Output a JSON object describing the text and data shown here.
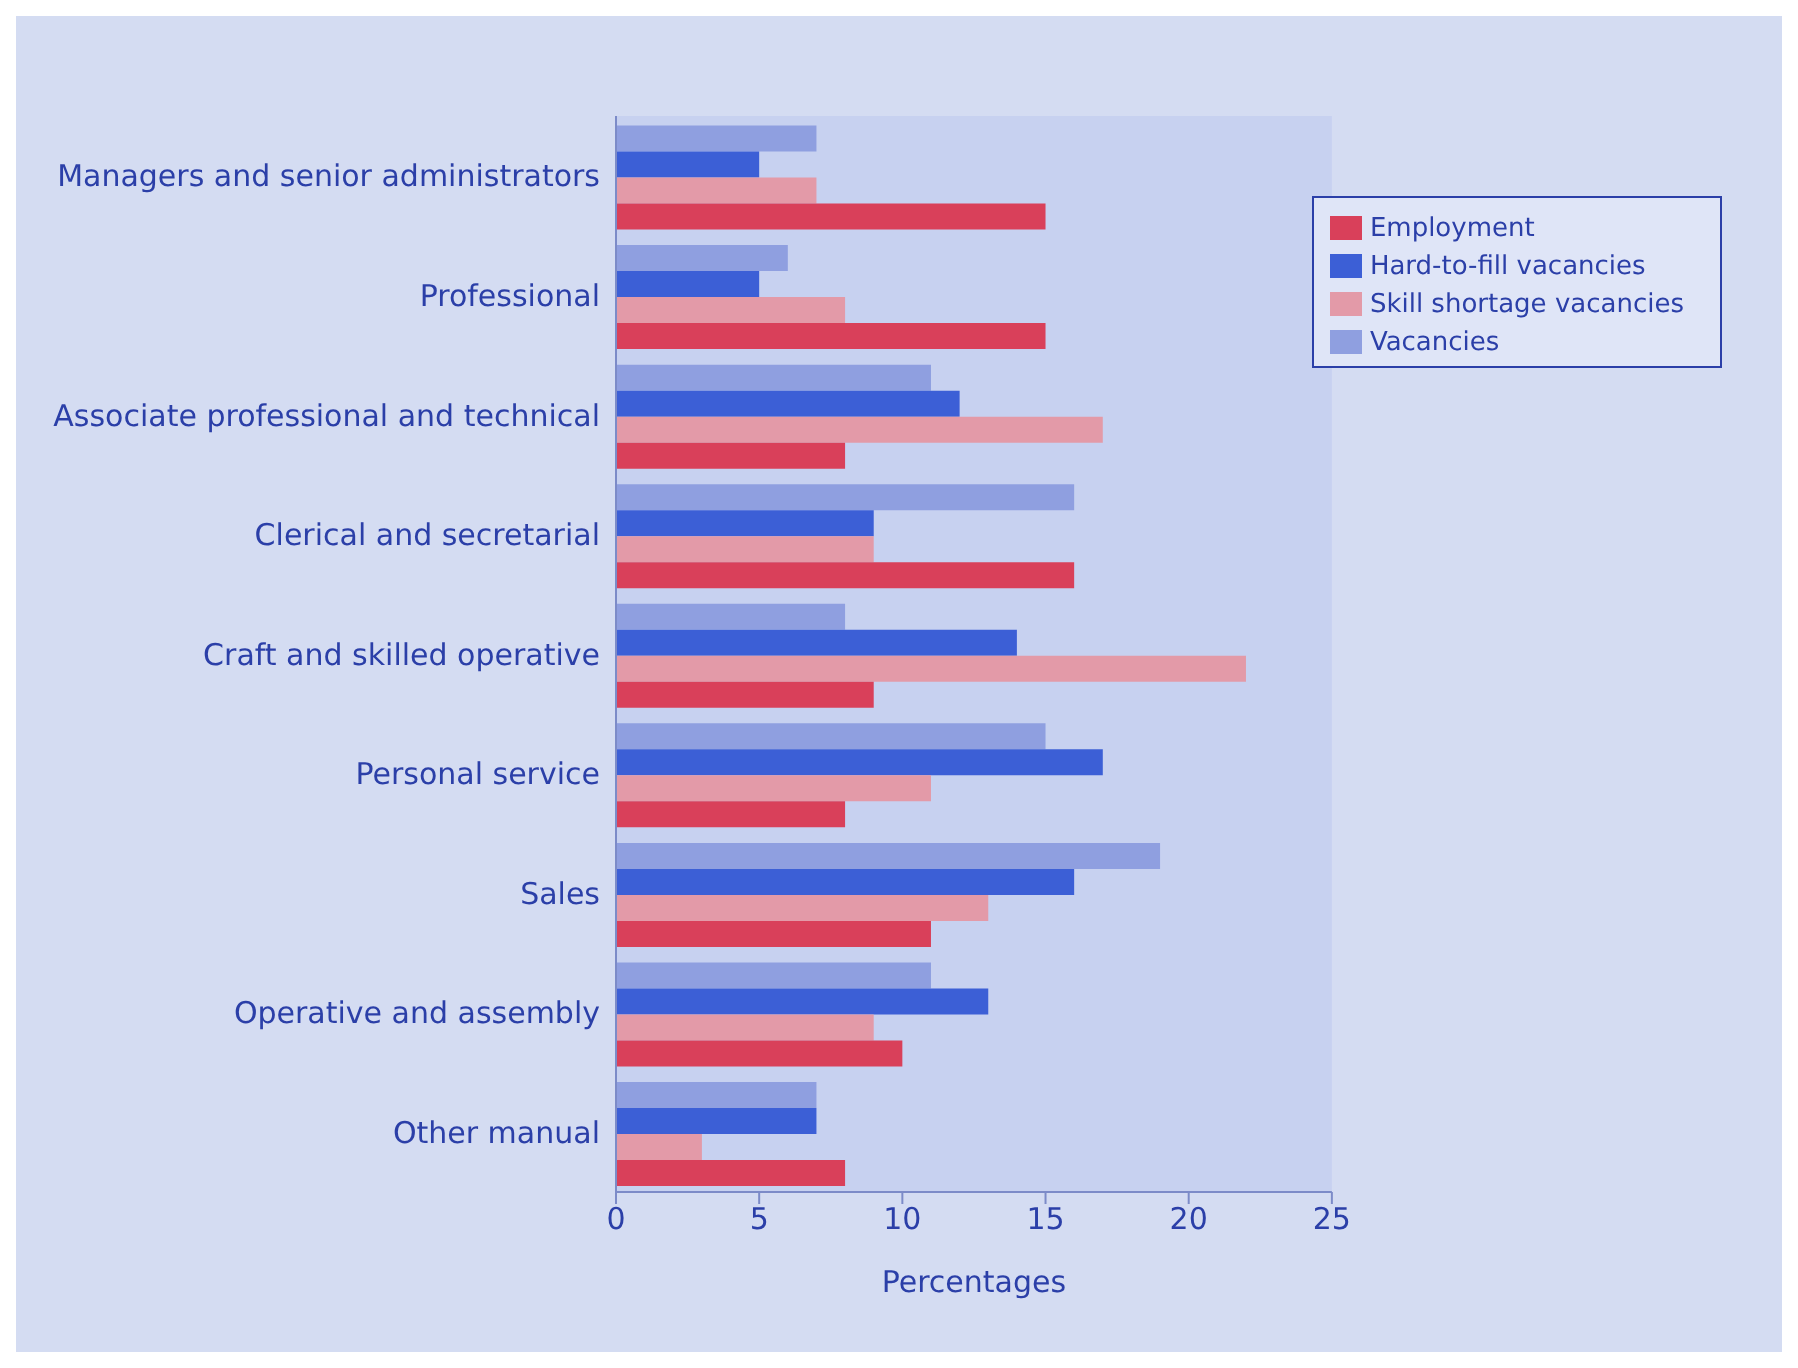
{
  "chart_data": {
    "type": "bar",
    "orientation": "horizontal",
    "xlabel": "Percentages",
    "categories": [
      "Managers and senior administrators",
      "Professional",
      "Associate professional and technical",
      "Clerical and secretarial",
      "Craft and skilled operative",
      "Personal service",
      "Sales",
      "Operative and assembly",
      "Other manual"
    ],
    "series": [
      {
        "name": "Vacancies",
        "color": "#8f9fe0",
        "values": [
          7,
          6,
          11,
          16,
          8,
          15,
          19,
          11,
          7
        ]
      },
      {
        "name": "Hard-to-fill vacancies",
        "color": "#3c5fd6",
        "values": [
          5,
          5,
          12,
          9,
          14,
          17,
          16,
          13,
          7
        ]
      },
      {
        "name": "Skill shortage vacancies",
        "color": "#e39aa8",
        "values": [
          7,
          8,
          17,
          9,
          22,
          11,
          13,
          9,
          3
        ]
      },
      {
        "name": "Employment",
        "color": "#d9405a",
        "values": [
          15,
          15,
          8,
          16,
          9,
          8,
          11,
          10,
          8
        ]
      }
    ],
    "xlim": [
      0,
      25
    ],
    "xticks": [
      0,
      5,
      10,
      15,
      20,
      25
    ],
    "grid": false,
    "legend": "top right"
  }
}
